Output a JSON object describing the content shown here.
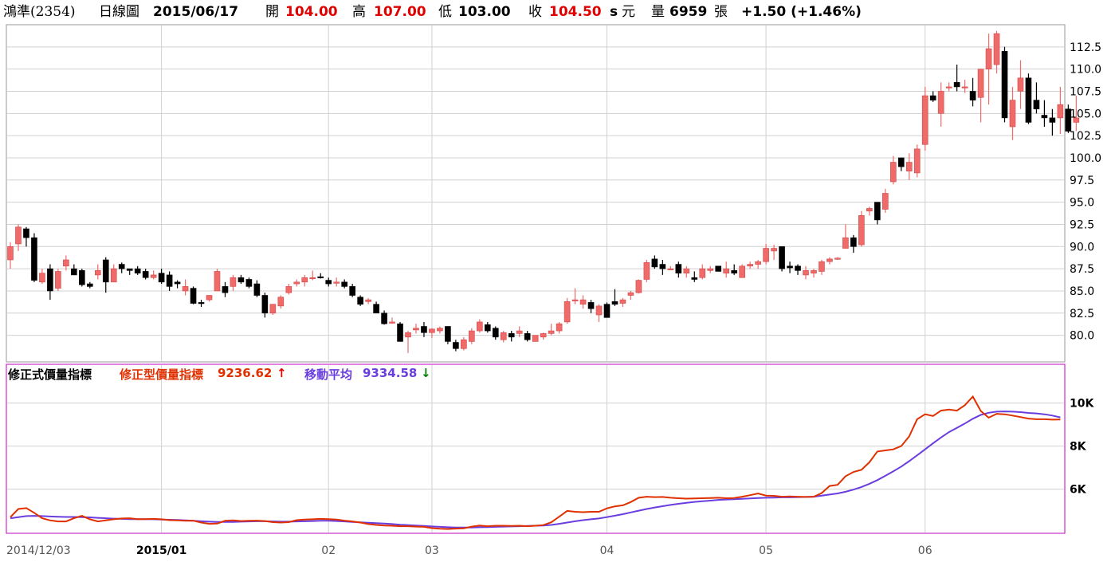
{
  "header": {
    "stock": "鴻準(2354)",
    "period": "日線圖",
    "date": "2015/06/17",
    "open_label": "開",
    "open": "104.00",
    "high_label": "高",
    "high": "107.00",
    "low_label": "低",
    "low": "103.00",
    "close_label": "收",
    "close": "104.50",
    "close_marker": "s",
    "unit": "元",
    "volume_label": "量",
    "volume": "6959",
    "volume_unit": "張",
    "change": "+1.50 (+1.46%)"
  },
  "indicator_legend": {
    "title": "修正式價量指標",
    "line1_label": "修正型價量指標",
    "line1_value": "9236.62",
    "line1_arrow": "↑",
    "line2_label": "移動平均",
    "line2_value": "9334.58",
    "line2_arrow": "↓"
  },
  "colors": {
    "up": "#f06a6a",
    "down": "#000000",
    "indicator": "#e03000",
    "ma": "#6a3ddf",
    "panel_border": "#c000c0",
    "grid": "#d0d0d0",
    "arrow_up": "#e00000",
    "arrow_down": "#008000"
  },
  "chart_data": [
    {
      "type": "candlestick",
      "y_ticks": [
        "80.0",
        "82.5",
        "85.0",
        "87.5",
        "90.0",
        "92.5",
        "95.0",
        "97.5",
        "100.0",
        "102.5",
        "105.0",
        "107.5",
        "110.0",
        "112.5"
      ],
      "ylim": [
        77,
        115
      ],
      "ohlc": [
        [
          88.5,
          90.5,
          87.5,
          90
        ],
        [
          90.3,
          92.5,
          89.5,
          92.2
        ],
        [
          92,
          92.2,
          90,
          91
        ],
        [
          91,
          91.5,
          86,
          86.2
        ],
        [
          86,
          87.5,
          85.8,
          87
        ],
        [
          87.5,
          88,
          84,
          85
        ],
        [
          85.3,
          87.5,
          85,
          87.2
        ],
        [
          87.8,
          89,
          87.3,
          88.5
        ],
        [
          87.5,
          88,
          86.8,
          86.8
        ],
        [
          87.3,
          87.5,
          85.5,
          85.7
        ],
        [
          85.8,
          86,
          85.3,
          85.5
        ],
        [
          86.8,
          88,
          86.3,
          87.3
        ],
        [
          88.5,
          88.8,
          84.8,
          86
        ],
        [
          86,
          88,
          86,
          87.5
        ],
        [
          88,
          88.2,
          87,
          87.5
        ],
        [
          87.5,
          87.5,
          86.8,
          87.3
        ],
        [
          87.5,
          87.8,
          86.8,
          87
        ],
        [
          87.2,
          87.5,
          86.3,
          86.5
        ],
        [
          86.5,
          87.3,
          86.3,
          86.8
        ],
        [
          87,
          87.5,
          85.8,
          86
        ],
        [
          86.8,
          87.2,
          85,
          85.5
        ],
        [
          86,
          86.2,
          85.3,
          85.8
        ],
        [
          85,
          86.3,
          84.5,
          85.5
        ],
        [
          85.3,
          85.5,
          83.5,
          83.6
        ],
        [
          83.7,
          84,
          83.2,
          83.6
        ],
        [
          84,
          84.5,
          83.8,
          84.5
        ],
        [
          85,
          87.5,
          85,
          87.2
        ],
        [
          85.5,
          86,
          84.3,
          84.8
        ],
        [
          85.5,
          86.8,
          85,
          86.5
        ],
        [
          86.5,
          86.8,
          85.8,
          86
        ],
        [
          86.3,
          86.5,
          85.3,
          85.5
        ],
        [
          85.8,
          86.2,
          84.3,
          84.5
        ],
        [
          84.5,
          84.8,
          82,
          82.5
        ],
        [
          82.5,
          83.5,
          82.3,
          83.5
        ],
        [
          83.3,
          84.5,
          83,
          84.3
        ],
        [
          84.8,
          85.8,
          84.6,
          85.5
        ],
        [
          85.8,
          86.3,
          85.5,
          86
        ],
        [
          86,
          86.8,
          85.5,
          86.5
        ],
        [
          86.5,
          87.3,
          86.2,
          86.5
        ],
        [
          86.6,
          87,
          86.4,
          86.5
        ],
        [
          86.2,
          86.5,
          85.5,
          85.8
        ],
        [
          86,
          86.5,
          85.5,
          86
        ],
        [
          86,
          86.3,
          85.3,
          85.5
        ],
        [
          85.5,
          85.8,
          84.3,
          84.5
        ],
        [
          84.3,
          84.5,
          83.3,
          83.5
        ],
        [
          83.8,
          84.2,
          83.5,
          84
        ],
        [
          83.5,
          83.8,
          82.5,
          82.5
        ],
        [
          82.5,
          82.8,
          81.2,
          81.3
        ],
        [
          81.5,
          82,
          81.3,
          81.5
        ],
        [
          81.3,
          81.5,
          79.3,
          79.3
        ],
        [
          79.8,
          80.5,
          78,
          80.3
        ],
        [
          80.6,
          81.3,
          80.2,
          80.8
        ],
        [
          81,
          81.5,
          79.8,
          80.3
        ],
        [
          80.3,
          80.8,
          79.7,
          80.7
        ],
        [
          80.5,
          81,
          80.2,
          80.8
        ],
        [
          81,
          81,
          79,
          79.3
        ],
        [
          79.2,
          79.5,
          78.2,
          78.5
        ],
        [
          78.5,
          79.8,
          78.3,
          79.5
        ],
        [
          79.3,
          80.8,
          79,
          80.5
        ],
        [
          80.5,
          81.8,
          80.3,
          81.5
        ],
        [
          81.2,
          81.5,
          80.3,
          80.5
        ],
        [
          80.8,
          81,
          79.5,
          79.8
        ],
        [
          79.5,
          80.5,
          79.2,
          80.3
        ],
        [
          80.2,
          80.5,
          79.3,
          79.8
        ],
        [
          80.2,
          81,
          79.8,
          80.5
        ],
        [
          80.2,
          80.5,
          79.3,
          79.5
        ],
        [
          79.3,
          80,
          79.3,
          80
        ],
        [
          79.8,
          80.3,
          79.5,
          80.2
        ],
        [
          80.2,
          81.3,
          80,
          80.5
        ],
        [
          80.5,
          81.5,
          80.2,
          81.3
        ],
        [
          81.5,
          84.2,
          81.3,
          83.8
        ],
        [
          84,
          85.3,
          83.5,
          84
        ],
        [
          83.5,
          84.5,
          83,
          84
        ],
        [
          83.7,
          84,
          82.5,
          83
        ],
        [
          82.3,
          83.5,
          81.5,
          83.3
        ],
        [
          83.5,
          83.7,
          82,
          82
        ],
        [
          83.8,
          85.2,
          83.3,
          83.5
        ],
        [
          83.6,
          84.2,
          83.2,
          84
        ],
        [
          84.5,
          85,
          84,
          84.8
        ],
        [
          84.8,
          86.3,
          84.7,
          86.2
        ],
        [
          86.3,
          88.5,
          86,
          88.2
        ],
        [
          88.6,
          89,
          87.5,
          87.7
        ],
        [
          88,
          88.5,
          86.8,
          87.5
        ],
        [
          87.5,
          87.8,
          87.5,
          87.5
        ],
        [
          88,
          88.3,
          86.5,
          87
        ],
        [
          87,
          87.8,
          86.5,
          87.5
        ],
        [
          86.5,
          87.2,
          86,
          86.3
        ],
        [
          86.5,
          88,
          86.3,
          87.5
        ],
        [
          87.3,
          87.8,
          87,
          87.5
        ],
        [
          87.8,
          87.5,
          87.2,
          87.2
        ],
        [
          87,
          88.3,
          86.5,
          87.5
        ],
        [
          87.3,
          88,
          86.8,
          87
        ],
        [
          86.5,
          88,
          86.5,
          87.8
        ],
        [
          87.8,
          88.3,
          87.5,
          88
        ],
        [
          88,
          88.5,
          87.5,
          88.3
        ],
        [
          88.3,
          90.3,
          88,
          89.8
        ],
        [
          89.5,
          90.2,
          88.5,
          89.8
        ],
        [
          90,
          90,
          87.2,
          87.5
        ],
        [
          87.8,
          88.3,
          87,
          87.6
        ],
        [
          87.8,
          88,
          86.8,
          87.3
        ],
        [
          86.8,
          87.8,
          86.3,
          87.3
        ],
        [
          87,
          87.5,
          86.5,
          87.3
        ],
        [
          87.2,
          88.5,
          86.8,
          88.3
        ],
        [
          88.3,
          88.8,
          88,
          88.6
        ],
        [
          88.7,
          88.8,
          88.5,
          88.7
        ],
        [
          89.8,
          92.5,
          89.8,
          91
        ],
        [
          91,
          91.3,
          89.3,
          90
        ],
        [
          90.2,
          94,
          90,
          93.5
        ],
        [
          94,
          94.5,
          93.5,
          94.3
        ],
        [
          95,
          95,
          92.5,
          93
        ],
        [
          94.2,
          96.5,
          93.8,
          96
        ],
        [
          97.3,
          100.2,
          97,
          99.5
        ],
        [
          100,
          100,
          98.5,
          99
        ],
        [
          98.5,
          100.5,
          97.5,
          99.5
        ],
        [
          98.3,
          101.5,
          97.8,
          101
        ],
        [
          101.5,
          108,
          100.8,
          107
        ],
        [
          107,
          107.5,
          106.3,
          106.5
        ],
        [
          105,
          108.5,
          103.5,
          107.5
        ],
        [
          108,
          108.5,
          107.5,
          108
        ],
        [
          108.5,
          110.5,
          107.5,
          108
        ],
        [
          108,
          108.8,
          107.3,
          108
        ],
        [
          107.5,
          109,
          105.8,
          106.5
        ],
        [
          106.8,
          110,
          104,
          110
        ],
        [
          110,
          114,
          106,
          112.3
        ],
        [
          110.5,
          114.3,
          109.5,
          114
        ],
        [
          112,
          112.5,
          104,
          104.5
        ],
        [
          103.5,
          108,
          102,
          106.5
        ],
        [
          107.5,
          111,
          105.5,
          109
        ],
        [
          109,
          109.5,
          103.8,
          104
        ],
        [
          106.5,
          108.5,
          105,
          105.5
        ],
        [
          104.8,
          106.5,
          103.5,
          104.5
        ],
        [
          104.5,
          105.5,
          102.5,
          104
        ],
        [
          104.5,
          108,
          102.7,
          106
        ],
        [
          105.5,
          106,
          102.8,
          103
        ],
        [
          104,
          107,
          103,
          104.5
        ]
      ],
      "x_ticks": [
        {
          "label": "2014/12/03",
          "index": 0,
          "bold": false
        },
        {
          "label": "2015/01",
          "index": 19,
          "bold": true
        },
        {
          "label": "02",
          "index": 40,
          "bold": false
        },
        {
          "label": "03",
          "index": 53,
          "bold": false
        },
        {
          "label": "04",
          "index": 75,
          "bold": false
        },
        {
          "label": "05",
          "index": 95,
          "bold": false
        },
        {
          "label": "06",
          "index": 115,
          "bold": false
        }
      ]
    },
    {
      "type": "line",
      "y_ticks": [
        {
          "label": "6K",
          "value": 6000
        },
        {
          "label": "8K",
          "value": 8000
        },
        {
          "label": "10K",
          "value": 10000
        }
      ],
      "ylim": [
        3950,
        11800
      ],
      "series": [
        {
          "values": [
            4700,
            5080,
            5120,
            4900,
            4650,
            4550,
            4500,
            4500,
            4650,
            4760,
            4600,
            4500,
            4550,
            4600,
            4640,
            4650,
            4610,
            4610,
            4620,
            4600,
            4560,
            4550,
            4530,
            4540,
            4450,
            4390,
            4400,
            4530,
            4550,
            4520,
            4530,
            4540,
            4520,
            4470,
            4450,
            4470,
            4560,
            4590,
            4600,
            4620,
            4610,
            4590,
            4540,
            4500,
            4450,
            4380,
            4340,
            4310,
            4300,
            4280,
            4280,
            4260,
            4250,
            4190,
            4160,
            4150,
            4170,
            4180,
            4260,
            4310,
            4280,
            4300,
            4300,
            4290,
            4300,
            4280,
            4300,
            4330,
            4460,
            4720,
            4990,
            4950,
            4930,
            4950,
            4950,
            5110,
            5200,
            5250,
            5400,
            5600,
            5650,
            5630,
            5640,
            5600,
            5580,
            5560,
            5570,
            5580,
            5590,
            5600,
            5580,
            5590,
            5650,
            5720,
            5800,
            5700,
            5690,
            5650,
            5660,
            5650,
            5640,
            5650,
            5820,
            6150,
            6200,
            6600,
            6800,
            6900,
            7250,
            7750,
            7800,
            7850,
            8000,
            8450,
            9250,
            9480,
            9400,
            9650,
            9700,
            9650,
            9900,
            10300,
            9630,
            9320,
            9500,
            9480,
            9420,
            9350,
            9280,
            9250,
            9250,
            9230,
            9237
          ]
        },
        {
          "values": [
            4650,
            4700,
            4750,
            4760,
            4750,
            4730,
            4720,
            4710,
            4710,
            4700,
            4690,
            4670,
            4650,
            4630,
            4620,
            4610,
            4610,
            4610,
            4600,
            4590,
            4580,
            4570,
            4550,
            4530,
            4510,
            4490,
            4480,
            4480,
            4480,
            4490,
            4500,
            4510,
            4510,
            4500,
            4490,
            4490,
            4500,
            4510,
            4520,
            4530,
            4530,
            4520,
            4500,
            4480,
            4460,
            4440,
            4420,
            4400,
            4380,
            4350,
            4330,
            4310,
            4290,
            4270,
            4250,
            4230,
            4220,
            4220,
            4220,
            4230,
            4240,
            4250,
            4260,
            4270,
            4280,
            4290,
            4300,
            4310,
            4340,
            4390,
            4450,
            4510,
            4560,
            4600,
            4640,
            4700,
            4770,
            4840,
            4920,
            5000,
            5080,
            5150,
            5210,
            5270,
            5320,
            5370,
            5410,
            5440,
            5470,
            5500,
            5520,
            5530,
            5550,
            5570,
            5590,
            5600,
            5610,
            5620,
            5620,
            5630,
            5640,
            5650,
            5700,
            5750,
            5800,
            5880,
            5980,
            6100,
            6250,
            6420,
            6620,
            6830,
            7050,
            7300,
            7570,
            7850,
            8130,
            8400,
            8650,
            8850,
            9050,
            9270,
            9450,
            9550,
            9600,
            9610,
            9600,
            9580,
            9540,
            9520,
            9480,
            9420,
            9335
          ]
        }
      ]
    }
  ]
}
